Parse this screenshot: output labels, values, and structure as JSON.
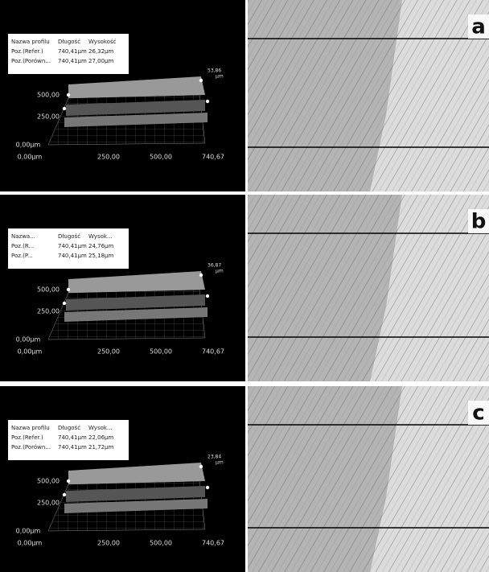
{
  "panels": [
    {
      "label": "a",
      "table": {
        "header": [
          "Nazwa profilu",
          "Długość",
          "Wysokość"
        ],
        "rows": [
          [
            "Poz.(Refer.)",
            "740,41µm",
            "26,32µm"
          ],
          [
            "Poz.(Porówn...",
            "740,41µm",
            "27,00µm"
          ]
        ]
      },
      "z_max": "53,86",
      "z_unit": "µm",
      "y_labels": [
        "500,00",
        "250,00",
        "0,00µm"
      ],
      "x_labels": [
        "0,00µm",
        "250,00",
        "500,00",
        "740,67"
      ]
    },
    {
      "label": "b",
      "table": {
        "header": [
          "Nazwa...",
          "Długość",
          "Wysok..."
        ],
        "rows": [
          [
            "Poz.(R...",
            "740,41µm",
            "24,76µm"
          ],
          [
            "Poz.(P...",
            "740,41µm",
            "25,18µm"
          ]
        ]
      },
      "z_max": "36,87",
      "z_unit": "µm",
      "y_labels": [
        "500,00",
        "250,00",
        "0,00µm"
      ],
      "x_labels": [
        "0,00µm",
        "250,00",
        "500,00",
        "740,67"
      ]
    },
    {
      "label": "c",
      "table": {
        "header": [
          "Nazwa profilu",
          "Długość",
          "Wysok..."
        ],
        "rows": [
          [
            "Poz.(Refer.)",
            "740,41µm",
            "22,06µm"
          ],
          [
            "Poz.(Porówn...",
            "740,41µm",
            "21,72µm"
          ]
        ]
      },
      "z_max": "23,84",
      "z_unit": "µm",
      "y_labels": [
        "500,00",
        "250,00",
        "0,00µm"
      ],
      "x_labels": [
        "0,00µm",
        "250,00",
        "500,00",
        "740,67"
      ]
    }
  ]
}
